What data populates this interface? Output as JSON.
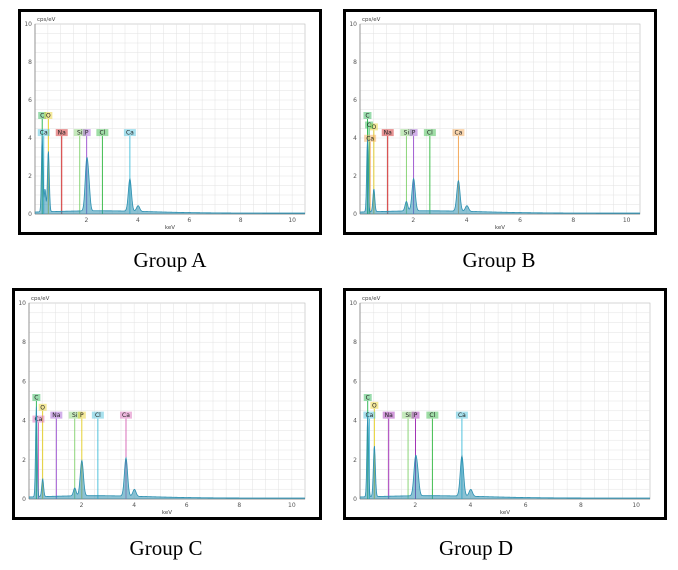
{
  "figure": {
    "captions": [
      "Group A",
      "Group B",
      "Group C",
      "Group D"
    ]
  },
  "chart_data": [
    {
      "type": "line",
      "title": "Group A",
      "xlabel": "keV",
      "ylabel": "cps/eV",
      "xlim": [
        0,
        10.5
      ],
      "ylim": [
        0,
        10
      ],
      "xticks": [
        2,
        4,
        6,
        8,
        10
      ],
      "yticks": [
        0,
        2,
        4,
        6,
        8,
        10
      ],
      "grid": true,
      "spectrum_color": "#2b8fb0",
      "peaks": [
        {
          "x": 0.28,
          "y": 4.0,
          "w": 0.03
        },
        {
          "x": 0.39,
          "y": 1.2,
          "w": 0.03
        },
        {
          "x": 0.52,
          "y": 3.2,
          "w": 0.035
        },
        {
          "x": 2.01,
          "y": 2.6,
          "w": 0.06
        },
        {
          "x": 2.1,
          "y": 0.9,
          "w": 0.05
        },
        {
          "x": 3.69,
          "y": 1.7,
          "w": 0.06
        },
        {
          "x": 4.01,
          "y": 0.3,
          "w": 0.06
        }
      ],
      "element_markers": [
        {
          "label": "C",
          "x": 0.28,
          "color": "#1fb24a",
          "height": 5.0
        },
        {
          "label": "O",
          "x": 0.52,
          "color": "#e6cf1f",
          "height": 5.0
        },
        {
          "label": "Ca",
          "x": 0.34,
          "color": "#3fbcd9",
          "height": 4.1
        },
        {
          "label": "Na",
          "x": 1.04,
          "color": "#cc1111",
          "height": 4.1
        },
        {
          "label": "Si",
          "x": 1.74,
          "color": "#7fd06a",
          "height": 4.1
        },
        {
          "label": "P",
          "x": 2.01,
          "color": "#9b4fd1",
          "height": 4.1
        },
        {
          "label": "Cl",
          "x": 2.62,
          "color": "#2ab53a",
          "height": 4.1
        },
        {
          "label": "Ca",
          "x": 3.69,
          "color": "#3fbcd9",
          "height": 4.1
        }
      ]
    },
    {
      "type": "line",
      "title": "Group B",
      "xlabel": "keV",
      "ylabel": "cps/eV",
      "xlim": [
        0,
        10.5
      ],
      "ylim": [
        0,
        10
      ],
      "xticks": [
        2,
        4,
        6,
        8,
        10
      ],
      "yticks": [
        0,
        2,
        4,
        6,
        8,
        10
      ],
      "grid": true,
      "spectrum_color": "#2b8fb0",
      "peaks": [
        {
          "x": 0.28,
          "y": 3.8,
          "w": 0.03
        },
        {
          "x": 0.52,
          "y": 1.2,
          "w": 0.035
        },
        {
          "x": 1.74,
          "y": 0.5,
          "w": 0.05
        },
        {
          "x": 2.01,
          "y": 1.7,
          "w": 0.06
        },
        {
          "x": 3.69,
          "y": 1.6,
          "w": 0.06
        },
        {
          "x": 4.01,
          "y": 0.3,
          "w": 0.06
        }
      ],
      "element_markers": [
        {
          "label": "C",
          "x": 0.28,
          "color": "#1fb24a",
          "height": 5.0
        },
        {
          "label": "O",
          "x": 0.52,
          "color": "#e6cf1f",
          "height": 4.4
        },
        {
          "label": "C",
          "x": 0.34,
          "color": "#1fb24a",
          "height": 4.5
        },
        {
          "label": "Ca",
          "x": 0.38,
          "color": "#f2a14a",
          "height": 3.8
        },
        {
          "label": "Na",
          "x": 1.04,
          "color": "#cc1111",
          "height": 4.1
        },
        {
          "label": "Si",
          "x": 1.74,
          "color": "#7fd06a",
          "height": 4.1
        },
        {
          "label": "P",
          "x": 2.01,
          "color": "#9b4fd1",
          "height": 4.1
        },
        {
          "label": "Cl",
          "x": 2.62,
          "color": "#2ab53a",
          "height": 4.1
        },
        {
          "label": "Ca",
          "x": 3.69,
          "color": "#f2a14a",
          "height": 4.1
        }
      ]
    },
    {
      "type": "line",
      "title": "Group C",
      "xlabel": "keV",
      "ylabel": "cps/eV",
      "xlim": [
        0,
        10.5
      ],
      "ylim": [
        0,
        10
      ],
      "xticks": [
        2,
        4,
        6,
        8,
        10
      ],
      "yticks": [
        0,
        2,
        4,
        6,
        8,
        10
      ],
      "grid": true,
      "spectrum_color": "#2b8fb0",
      "peaks": [
        {
          "x": 0.28,
          "y": 4.6,
          "w": 0.03
        },
        {
          "x": 0.52,
          "y": 0.9,
          "w": 0.035
        },
        {
          "x": 1.74,
          "y": 0.4,
          "w": 0.05
        },
        {
          "x": 2.01,
          "y": 1.8,
          "w": 0.06
        },
        {
          "x": 3.69,
          "y": 1.95,
          "w": 0.06
        },
        {
          "x": 4.01,
          "y": 0.35,
          "w": 0.06
        }
      ],
      "element_markers": [
        {
          "label": "C",
          "x": 0.28,
          "color": "#1fb24a",
          "height": 5.0
        },
        {
          "label": "O",
          "x": 0.52,
          "color": "#e6cf1f",
          "height": 4.5
        },
        {
          "label": "Ca",
          "x": 0.36,
          "color": "#d65fb3",
          "height": 3.9
        },
        {
          "label": "Na",
          "x": 1.04,
          "color": "#9b4fd1",
          "height": 4.1
        },
        {
          "label": "Si",
          "x": 1.74,
          "color": "#7fd06a",
          "height": 4.1
        },
        {
          "label": "P",
          "x": 2.01,
          "color": "#e6cf1f",
          "height": 4.1
        },
        {
          "label": "Cl",
          "x": 2.62,
          "color": "#3fbcd9",
          "height": 4.1
        },
        {
          "label": "Ca",
          "x": 3.69,
          "color": "#d65fb3",
          "height": 4.1
        }
      ]
    },
    {
      "type": "line",
      "title": "Group D",
      "xlabel": "keV",
      "ylabel": "cps/eV",
      "xlim": [
        0,
        10.5
      ],
      "ylim": [
        0,
        10
      ],
      "xticks": [
        2,
        4,
        6,
        8,
        10
      ],
      "yticks": [
        0,
        2,
        4,
        6,
        8,
        10
      ],
      "grid": true,
      "spectrum_color": "#2b8fb0",
      "peaks": [
        {
          "x": 0.28,
          "y": 4.2,
          "w": 0.03
        },
        {
          "x": 0.52,
          "y": 2.6,
          "w": 0.035
        },
        {
          "x": 2.01,
          "y": 1.9,
          "w": 0.06
        },
        {
          "x": 2.1,
          "y": 0.7,
          "w": 0.05
        },
        {
          "x": 3.69,
          "y": 2.05,
          "w": 0.06
        },
        {
          "x": 4.01,
          "y": 0.35,
          "w": 0.06
        }
      ],
      "element_markers": [
        {
          "label": "C",
          "x": 0.28,
          "color": "#1fb24a",
          "height": 5.0
        },
        {
          "label": "O",
          "x": 0.52,
          "color": "#e6cf1f",
          "height": 4.6
        },
        {
          "label": "Ca",
          "x": 0.34,
          "color": "#3fbcd9",
          "height": 4.1
        },
        {
          "label": "Na",
          "x": 1.04,
          "color": "#9b1fb0",
          "height": 4.1
        },
        {
          "label": "Si",
          "x": 1.74,
          "color": "#7fd06a",
          "height": 4.1
        },
        {
          "label": "P",
          "x": 2.01,
          "color": "#9b1fb0",
          "height": 4.1
        },
        {
          "label": "Cl",
          "x": 2.62,
          "color": "#2ab53a",
          "height": 4.1
        },
        {
          "label": "Ca",
          "x": 3.69,
          "color": "#3fbcd9",
          "height": 4.1
        }
      ]
    }
  ]
}
